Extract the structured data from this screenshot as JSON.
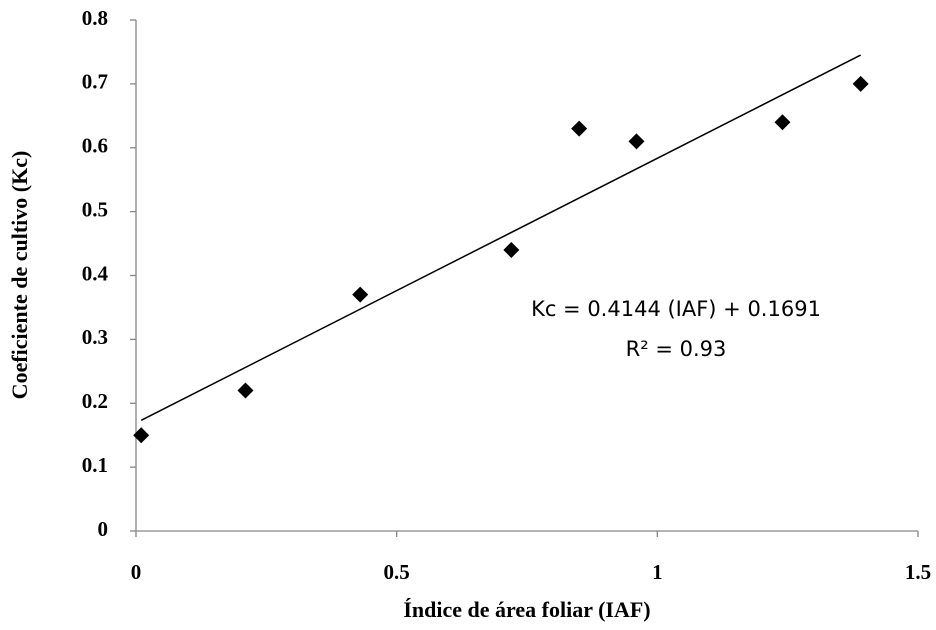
{
  "chart_data": {
    "type": "scatter",
    "x_label": "Índice de área foliar (IAF)",
    "y_label": "Coeficiente de cultivo (Kc)",
    "series": [
      {
        "name": "Kc",
        "color": "#000000",
        "x": [
          0.01,
          0.21,
          0.43,
          0.72,
          0.85,
          0.96,
          1.24,
          1.39
        ],
        "values": [
          0.15,
          0.22,
          0.37,
          0.44,
          0.63,
          0.61,
          0.64,
          0.7
        ]
      }
    ],
    "trendline": {
      "slope": 0.4144,
      "intercept": 0.1691,
      "x": [
        0.01,
        1.39
      ],
      "color": "#000000"
    },
    "annotations": [
      "Kc = 0.4144 (IAF) + 0.1691",
      "R² = 0.93"
    ],
    "xlim": [
      0,
      1.5
    ],
    "xticks": [
      0,
      0.5,
      1,
      1.5
    ],
    "ylim": [
      0,
      0.8
    ],
    "yticks": [
      0,
      0.1,
      0.2,
      0.3,
      0.4,
      0.5,
      0.6,
      0.7,
      0.8
    ],
    "grid": false
  }
}
